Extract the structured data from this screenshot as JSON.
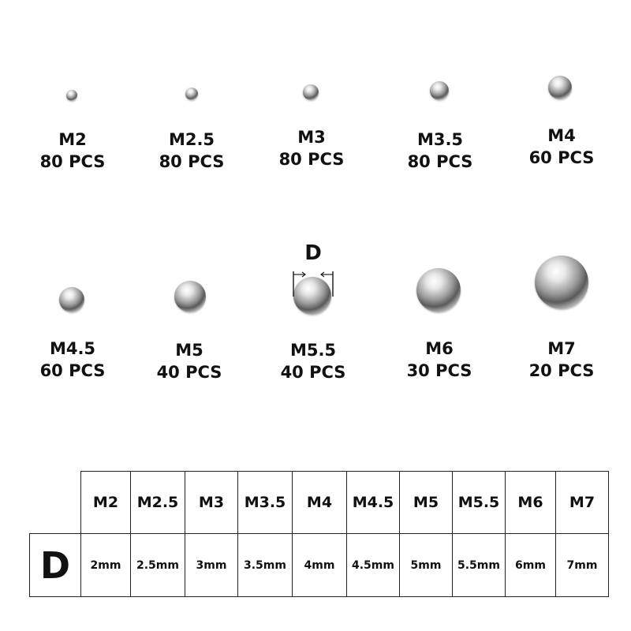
{
  "items": [
    {
      "size": "M2",
      "qty": "80 PCS"
    },
    {
      "size": "M2.5",
      "qty": "80 PCS"
    },
    {
      "size": "M3",
      "qty": "80 PCS"
    },
    {
      "size": "M3.5",
      "qty": "80 PCS"
    },
    {
      "size": "M4",
      "qty": "60 PCS"
    },
    {
      "size": "M4.5",
      "qty": "60 PCS"
    },
    {
      "size": "M5",
      "qty": "40 PCS"
    },
    {
      "size": "M5.5",
      "qty": "40 PCS"
    },
    {
      "size": "M6",
      "qty": "30 PCS"
    },
    {
      "size": "M7",
      "qty": "20 PCS"
    }
  ],
  "dimension_marker": "D",
  "table": {
    "row_label": "D",
    "headers": [
      "M2",
      "M2.5",
      "M3",
      "M3.5",
      "M4",
      "M4.5",
      "M5",
      "M5.5",
      "M6",
      "M7"
    ],
    "values": [
      "2mm",
      "2.5mm",
      "3mm",
      "3.5mm",
      "4mm",
      "4.5mm",
      "5mm",
      "5.5mm",
      "6mm",
      "7mm"
    ]
  }
}
